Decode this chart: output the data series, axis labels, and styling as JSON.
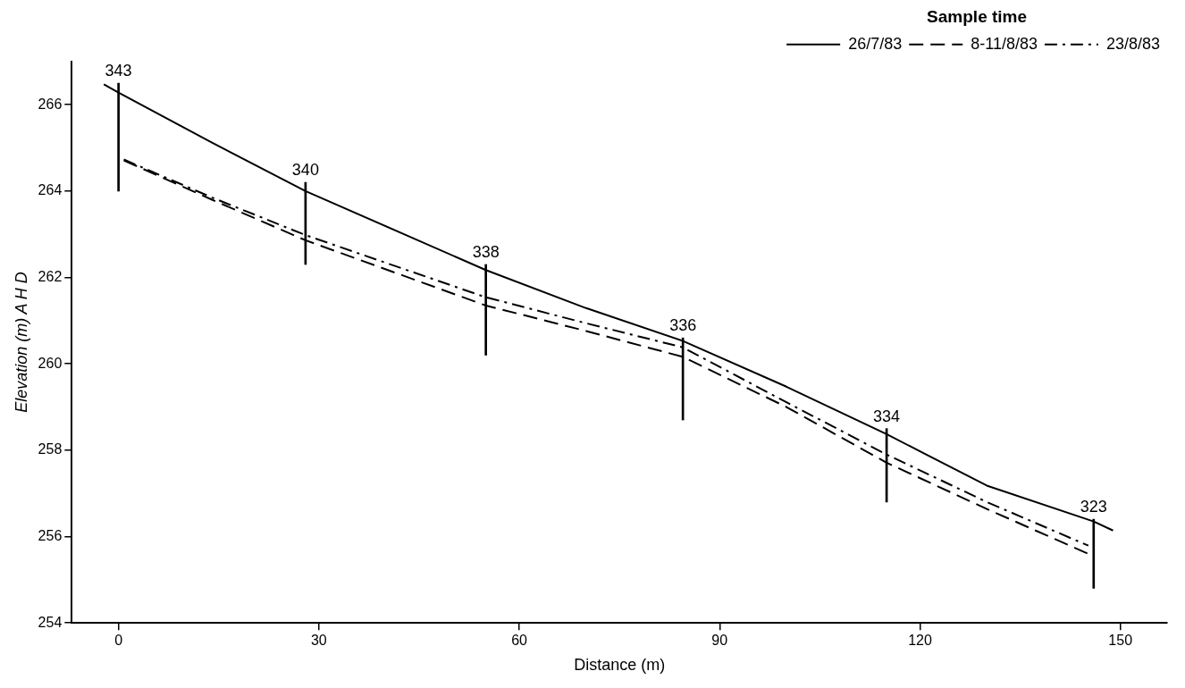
{
  "chart_data": {
    "type": "line",
    "xlabel": "Distance (m)",
    "ylabel": "Elevation (m) A H D",
    "legend_title": "Sample time",
    "legend": "top right",
    "xlim": [
      -7,
      157
    ],
    "xticks": [
      0,
      30,
      60,
      90,
      120,
      150
    ],
    "ylim": [
      254,
      267
    ],
    "yticks": [
      254,
      256,
      258,
      260,
      262,
      264,
      266
    ],
    "series": [
      {
        "name": "26/7/83",
        "color": "#000000",
        "line_style": "solid",
        "x": [
          -2.2,
          0,
          14,
          28,
          55,
          70,
          84.5,
          100,
          115,
          130,
          146,
          148.9
        ],
        "values": [
          266.47,
          266.28,
          265.12,
          264.0,
          262.17,
          261.29,
          260.53,
          259.47,
          258.37,
          257.18,
          256.35,
          256.14
        ]
      },
      {
        "name": "8-11/8/83",
        "color": "#000000",
        "line_style": "dashed",
        "x": [
          0.8,
          14,
          28,
          55,
          70,
          84.5,
          100,
          115,
          130,
          145.2
        ],
        "values": [
          264.71,
          263.8,
          262.86,
          261.35,
          260.76,
          260.16,
          259.0,
          257.71,
          256.64,
          255.6
        ]
      },
      {
        "name": "23/8/83",
        "color": "#000000",
        "line_style": "dashdot",
        "x": [
          0.8,
          14,
          28,
          55,
          70,
          84.5,
          100,
          115,
          130,
          145.2
        ],
        "values": [
          264.73,
          263.85,
          262.98,
          261.54,
          260.94,
          260.38,
          259.11,
          257.9,
          256.8,
          255.79
        ]
      },
      {
        "type": "bar",
        "color": "#000000",
        "x": [
          0,
          28,
          55,
          84.5,
          115,
          146
        ],
        "base": [
          264.0,
          262.3,
          260.2,
          258.7,
          256.8,
          254.8
        ],
        "values": [
          2.5,
          1.9,
          2.1,
          1.9,
          1.7,
          1.6
        ]
      }
    ],
    "annotations": [
      {
        "text": "343",
        "x": 0,
        "y": 266.5
      },
      {
        "text": "340",
        "x": 28,
        "y": 264.2
      },
      {
        "text": "338",
        "x": 55,
        "y": 262.3
      },
      {
        "text": "336",
        "x": 84.5,
        "y": 260.6
      },
      {
        "text": "334",
        "x": 115,
        "y": 258.5
      },
      {
        "text": "323",
        "x": 146,
        "y": 256.4
      }
    ]
  }
}
